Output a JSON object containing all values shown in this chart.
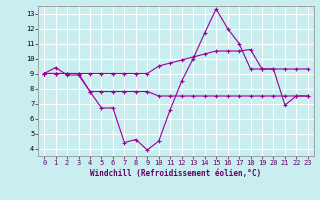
{
  "xlabel": "Windchill (Refroidissement éolien,°C)",
  "bg_color": "#c8eef0",
  "grid_color": "#ffffff",
  "line_color": "#990099",
  "xlim": [
    -0.5,
    23.5
  ],
  "ylim": [
    3.5,
    13.5
  ],
  "xticks": [
    0,
    1,
    2,
    3,
    4,
    5,
    6,
    7,
    8,
    9,
    10,
    11,
    12,
    13,
    14,
    15,
    16,
    17,
    18,
    19,
    20,
    21,
    22,
    23
  ],
  "yticks": [
    4,
    5,
    6,
    7,
    8,
    9,
    10,
    11,
    12,
    13
  ],
  "curve1_x": [
    0,
    1,
    2,
    3,
    4,
    5,
    6,
    7,
    8,
    9,
    10,
    11,
    12,
    13,
    14,
    15,
    16,
    17,
    18,
    19,
    20,
    21,
    22,
    23
  ],
  "curve1_y": [
    9.0,
    9.4,
    8.9,
    8.9,
    7.8,
    6.7,
    6.7,
    4.4,
    4.6,
    3.9,
    4.5,
    6.6,
    8.5,
    10.0,
    11.7,
    13.3,
    12.0,
    11.0,
    9.3,
    9.3,
    9.3,
    6.9,
    7.5,
    7.5
  ],
  "curve2_x": [
    0,
    1,
    2,
    3,
    4,
    5,
    6,
    7,
    8,
    9,
    10,
    11,
    12,
    13,
    14,
    15,
    16,
    17,
    18,
    19,
    20,
    21,
    22,
    23
  ],
  "curve2_y": [
    9.0,
    9.0,
    9.0,
    9.0,
    9.0,
    9.0,
    9.0,
    9.0,
    9.0,
    9.0,
    9.5,
    9.7,
    9.9,
    10.1,
    10.3,
    10.5,
    10.5,
    10.5,
    10.6,
    9.3,
    9.3,
    9.3,
    9.3,
    9.3
  ],
  "curve3_x": [
    0,
    1,
    2,
    3,
    4,
    5,
    6,
    7,
    8,
    9,
    10,
    11,
    12,
    13,
    14,
    15,
    16,
    17,
    18,
    19,
    20,
    21,
    22,
    23
  ],
  "curve3_y": [
    9.0,
    9.0,
    9.0,
    9.0,
    7.8,
    7.8,
    7.8,
    7.8,
    7.8,
    7.8,
    7.5,
    7.5,
    7.5,
    7.5,
    7.5,
    7.5,
    7.5,
    7.5,
    7.5,
    7.5,
    7.5,
    7.5,
    7.5,
    7.5
  ]
}
